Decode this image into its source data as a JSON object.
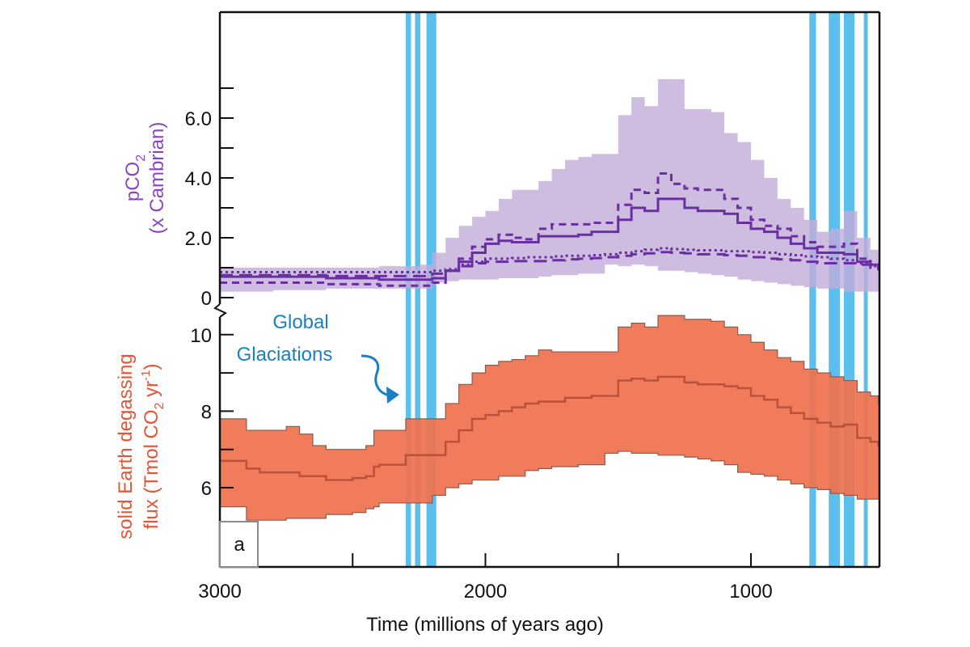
{
  "chart_data": {
    "type": "area",
    "panel_label": "a",
    "xlabel": "Time (millions of years ago)",
    "x_reversed": true,
    "xlim": [
      3000,
      520
    ],
    "x_ticks": [
      3000,
      2500,
      2000,
      1500,
      1000
    ],
    "x_tick_labels": [
      "3000",
      "2000",
      "1000"
    ],
    "glaciations_label": [
      "Global",
      "Glaciations"
    ],
    "glaciation_intervals_ma": [
      [
        2300,
        2280
      ],
      [
        2265,
        2245
      ],
      [
        2222,
        2185
      ],
      [
        780,
        755
      ],
      [
        707,
        665
      ],
      [
        650,
        610
      ],
      [
        575,
        560
      ]
    ],
    "colors": {
      "pco2": "#6a2fa0",
      "pco2_band": "#c2acd9",
      "degassing_band": "#f0724f",
      "degassing_line": "#b24a35",
      "glaciation": "#5bbfee",
      "glaciation_text": "#1b7fc1",
      "pco2_label": "#8a45c4",
      "degassing_label": "#e35535"
    },
    "panels": [
      {
        "name": "pco2",
        "ylabel_line1": "pCO",
        "ylabel_sub": "2",
        "ylabel_line2": "(x Cambrian)",
        "ylim": [
          0,
          7.5
        ],
        "y_ticks": [
          0,
          1,
          2,
          3,
          4,
          5,
          6,
          7
        ],
        "y_tick_labels": [
          {
            "v": 0,
            "t": "0"
          },
          {
            "v": 2,
            "t": "2.0"
          },
          {
            "v": 4,
            "t": "4.0"
          },
          {
            "v": 6,
            "t": "6.0"
          }
        ],
        "x": [
          3000,
          2800,
          2600,
          2400,
          2250,
          2200,
          2150,
          2100,
          2050,
          2000,
          1950,
          1900,
          1850,
          1800,
          1750,
          1700,
          1650,
          1600,
          1550,
          1500,
          1450,
          1400,
          1350,
          1300,
          1250,
          1200,
          1150,
          1100,
          1050,
          1000,
          950,
          900,
          850,
          800,
          750,
          700,
          650,
          600,
          550,
          520
        ],
        "band_upper": [
          1.0,
          1.0,
          1.0,
          1.05,
          1.1,
          1.5,
          2.0,
          2.4,
          2.7,
          2.9,
          3.3,
          3.6,
          3.6,
          3.9,
          4.3,
          4.6,
          4.7,
          4.8,
          4.8,
          6.1,
          6.7,
          6.4,
          7.3,
          7.3,
          6.3,
          6.3,
          6.2,
          5.5,
          5.2,
          4.6,
          4.0,
          3.3,
          3.0,
          2.6,
          2.2,
          2.3,
          2.9,
          2.0,
          1.6,
          1.5
        ],
        "band_lower": [
          0.2,
          0.2,
          0.25,
          0.3,
          0.3,
          0.3,
          0.5,
          0.55,
          0.6,
          0.6,
          0.6,
          0.65,
          0.65,
          0.65,
          0.7,
          0.75,
          0.75,
          0.8,
          0.8,
          1.1,
          1.05,
          1.1,
          1.05,
          0.9,
          0.9,
          0.85,
          0.8,
          0.75,
          0.7,
          0.6,
          0.55,
          0.5,
          0.45,
          0.4,
          0.35,
          0.3,
          0.3,
          0.2,
          0.2,
          0.2
        ],
        "series": [
          {
            "name": "median",
            "style": "solid",
            "values": [
              0.7,
              0.7,
              0.65,
              0.6,
              0.6,
              0.65,
              0.9,
              1.2,
              1.5,
              1.8,
              1.9,
              1.85,
              1.85,
              2.05,
              2.05,
              2.05,
              2.1,
              2.2,
              2.2,
              2.6,
              3.0,
              2.9,
              3.3,
              3.3,
              3.0,
              2.9,
              2.9,
              2.8,
              2.5,
              2.3,
              2.2,
              2.0,
              1.8,
              1.65,
              1.5,
              1.5,
              1.45,
              1.2,
              1.1,
              1.0
            ]
          },
          {
            "name": "upper-estimate",
            "style": "dashed",
            "values": [
              0.5,
              0.5,
              0.45,
              0.4,
              0.4,
              0.5,
              0.9,
              1.3,
              1.7,
              1.95,
              2.1,
              2.0,
              1.95,
              2.3,
              2.45,
              2.45,
              2.45,
              2.5,
              2.5,
              3.1,
              3.6,
              3.5,
              4.15,
              3.8,
              3.65,
              3.6,
              3.6,
              3.3,
              3.0,
              2.6,
              2.4,
              2.3,
              2.05,
              1.85,
              1.7,
              1.7,
              1.8,
              1.3,
              1.1,
              1.0
            ]
          },
          {
            "name": "low-estimate-dotted",
            "style": "dotted",
            "values": [
              0.85,
              0.85,
              0.85,
              0.85,
              0.85,
              0.9,
              0.95,
              1.1,
              1.2,
              1.3,
              1.3,
              1.32,
              1.35,
              1.35,
              1.38,
              1.4,
              1.4,
              1.42,
              1.45,
              1.5,
              1.55,
              1.6,
              1.65,
              1.62,
              1.6,
              1.58,
              1.58,
              1.55,
              1.55,
              1.52,
              1.5,
              1.45,
              1.42,
              1.38,
              1.35,
              1.3,
              1.25,
              1.15,
              1.05,
              1.0
            ]
          },
          {
            "name": "low-estimate-longdash",
            "style": "longdash",
            "values": [
              0.75,
              0.75,
              0.72,
              0.72,
              0.72,
              0.8,
              0.9,
              1.05,
              1.15,
              1.2,
              1.2,
              1.22,
              1.22,
              1.22,
              1.25,
              1.28,
              1.3,
              1.32,
              1.35,
              1.4,
              1.45,
              1.48,
              1.52,
              1.5,
              1.48,
              1.45,
              1.45,
              1.42,
              1.4,
              1.35,
              1.3,
              1.28,
              1.25,
              1.2,
              1.15,
              1.15,
              1.15,
              1.1,
              1.0,
              0.95
            ]
          }
        ]
      },
      {
        "name": "degassing",
        "ylabel_line1": "solid Earth degassing",
        "ylabel_line2_pre": "flux (Tmol CO",
        "ylabel_line2_sub": "2",
        "ylabel_line2_mid": " yr",
        "ylabel_line2_sup": "-1",
        "ylabel_line2_post": ")",
        "ylim": [
          3.95,
          10.5
        ],
        "y_ticks": [
          6,
          7,
          8,
          9,
          10
        ],
        "y_tick_labels": [
          {
            "v": 6,
            "t": "6"
          },
          {
            "v": 8,
            "t": "8"
          },
          {
            "v": 10,
            "t": "10"
          }
        ],
        "x": [
          3000,
          2930,
          2900,
          2850,
          2750,
          2700,
          2650,
          2600,
          2500,
          2450,
          2420,
          2400,
          2300,
          2200,
          2150,
          2100,
          2050,
          2000,
          1950,
          1900,
          1850,
          1800,
          1750,
          1700,
          1650,
          1600,
          1550,
          1500,
          1450,
          1400,
          1350,
          1300,
          1250,
          1200,
          1150,
          1100,
          1050,
          1000,
          950,
          900,
          850,
          800,
          750,
          700,
          650,
          600,
          550,
          520
        ],
        "band_upper": [
          7.8,
          7.8,
          7.5,
          7.5,
          7.6,
          7.4,
          7.1,
          7.0,
          7.0,
          7.1,
          7.5,
          7.5,
          7.8,
          7.8,
          8.2,
          8.7,
          9.0,
          9.2,
          9.3,
          9.35,
          9.45,
          9.6,
          9.55,
          9.55,
          9.55,
          9.55,
          9.55,
          10.2,
          10.3,
          10.2,
          10.5,
          10.5,
          10.4,
          10.4,
          10.35,
          10.2,
          10.0,
          9.8,
          9.6,
          9.4,
          9.3,
          9.1,
          9.0,
          8.9,
          8.8,
          8.5,
          8.4,
          8.2
        ],
        "band_lower": [
          5.5,
          5.5,
          5.5,
          5.15,
          5.15,
          5.2,
          5.2,
          5.2,
          5.3,
          5.35,
          5.45,
          5.5,
          5.6,
          5.6,
          5.8,
          6.0,
          6.1,
          6.2,
          6.2,
          6.3,
          6.3,
          6.45,
          6.5,
          6.55,
          6.55,
          6.6,
          6.6,
          6.9,
          6.95,
          6.9,
          6.9,
          6.85,
          6.85,
          6.8,
          6.75,
          6.7,
          6.6,
          6.4,
          6.35,
          6.3,
          6.2,
          6.1,
          6.0,
          5.95,
          5.85,
          5.8,
          5.7,
          5.7
        ],
        "series": [
          {
            "name": "median",
            "style": "solid",
            "values": [
              6.7,
              6.7,
              6.5,
              6.4,
              6.4,
              6.3,
              6.3,
              6.2,
              6.25,
              6.3,
              6.55,
              6.6,
              6.85,
              6.85,
              7.2,
              7.5,
              7.8,
              7.9,
              8.0,
              8.1,
              8.2,
              8.25,
              8.25,
              8.35,
              8.35,
              8.4,
              8.4,
              8.8,
              8.85,
              8.8,
              8.9,
              8.9,
              8.75,
              8.7,
              8.7,
              8.65,
              8.6,
              8.4,
              8.3,
              8.1,
              7.95,
              7.8,
              7.7,
              7.6,
              7.65,
              7.3,
              7.2,
              7.1
            ]
          }
        ]
      }
    ]
  }
}
